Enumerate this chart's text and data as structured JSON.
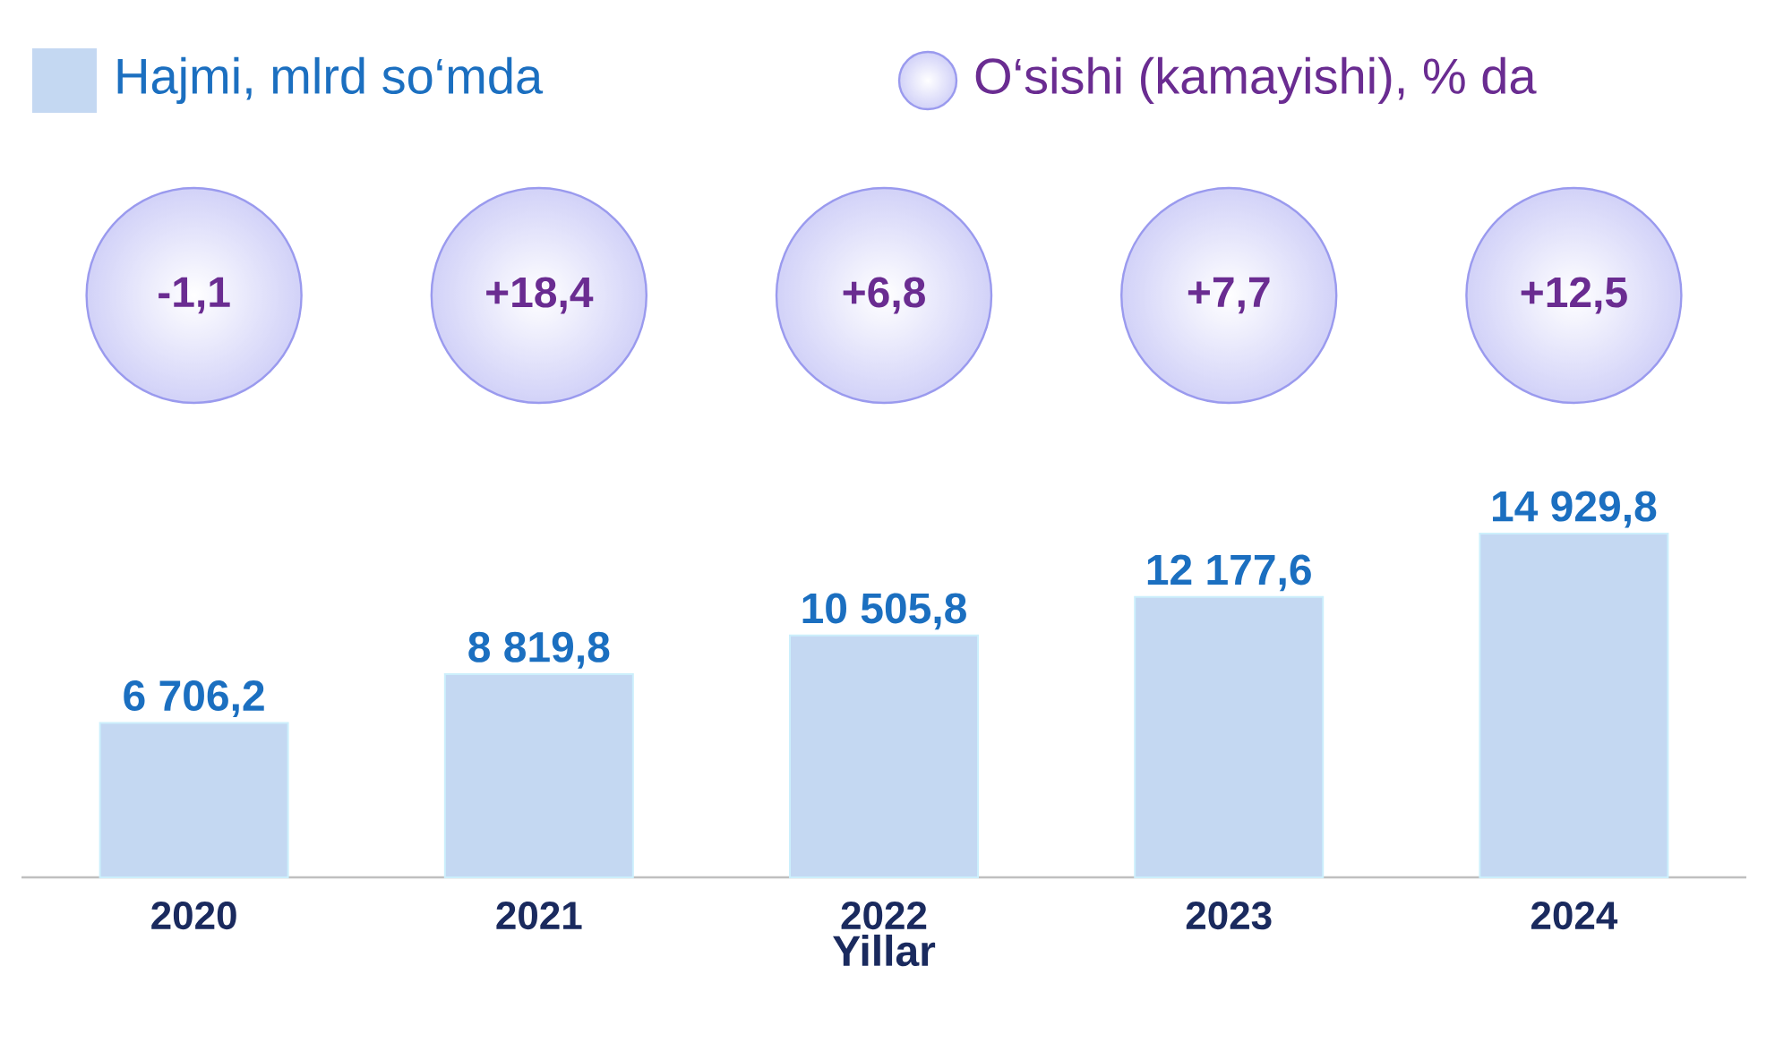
{
  "chart_data": [
    {
      "type": "bar",
      "xlabel": "Yillar",
      "legend": "top left",
      "categories": [
        "2020",
        "2021",
        "2022",
        "2023",
        "2024"
      ],
      "series": [
        {
          "name": "Hajmi, mlrd so‘mda",
          "color": "#c4d8f2",
          "values": [
            6706.2,
            8819.8,
            10505.8,
            12177.6,
            14929.8
          ],
          "value_labels": [
            "6 706,2",
            "8 819,8",
            "10 505,8",
            "12 177,6",
            "14 929,8"
          ]
        }
      ]
    },
    {
      "type": "other",
      "legend": "top right",
      "categories": [
        null,
        null,
        null,
        null,
        null
      ],
      "series": [
        {
          "name": "O‘sishi (kamayishi), % da",
          "color": "#d2d2f8",
          "values": [
            -1.1,
            18.4,
            6.8,
            7.7,
            12.5
          ],
          "value_labels": [
            "-1,1",
            "+18,4",
            "+6,8",
            "+7,7",
            "+12,5"
          ]
        }
      ]
    }
  ]
}
